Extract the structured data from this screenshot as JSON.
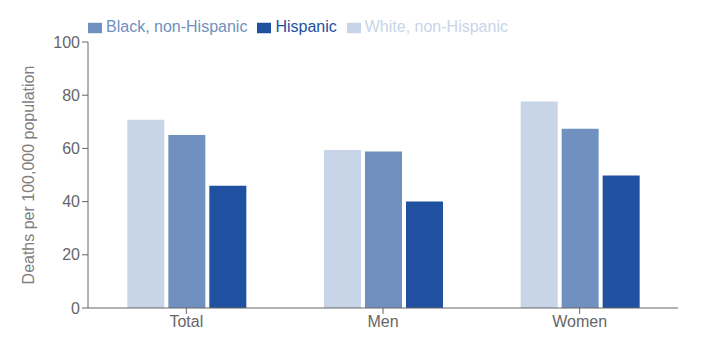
{
  "chart_data": {
    "type": "bar",
    "categories": [
      "Total",
      "Men",
      "Women"
    ],
    "series": [
      {
        "name": "White, non-Hispanic",
        "color": "#c8d4e8",
        "values": [
          70.8,
          59.4,
          77.6
        ]
      },
      {
        "name": "Black, non-Hispanic",
        "color": "#7090c0",
        "values": [
          65.0,
          58.8,
          67.4
        ]
      },
      {
        "name": "Hispanic",
        "color": "#2050a0",
        "values": [
          46.0,
          40.0,
          49.8
        ]
      }
    ],
    "ylabel": "Deaths per 100,000 population",
    "ylim": [
      0,
      100
    ],
    "yticks": [
      0,
      20,
      40,
      60,
      80,
      100
    ],
    "legend": "upper left",
    "grid": false
  }
}
